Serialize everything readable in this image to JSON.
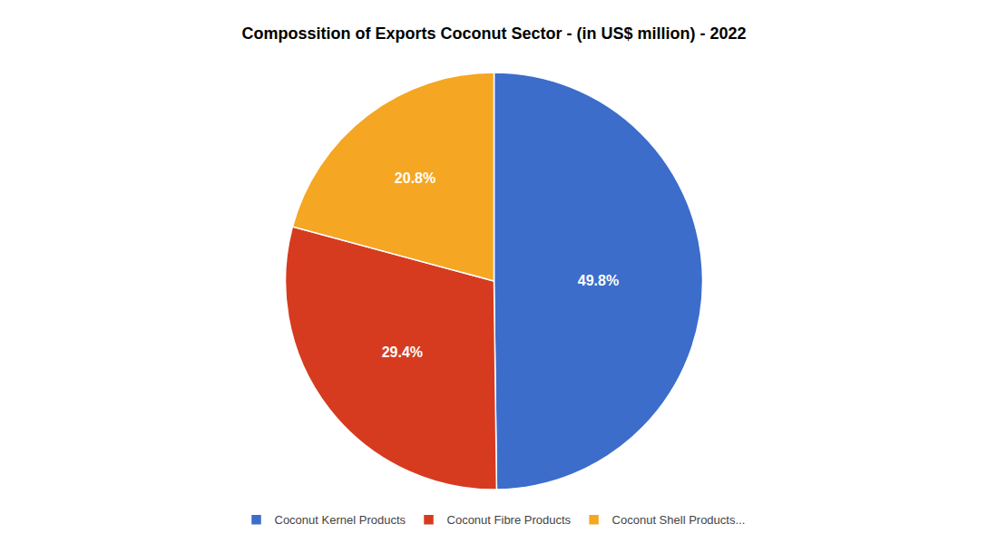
{
  "chart_data": {
    "type": "pie",
    "title": "Compossition of Exports Coconut Sector - (in US$ million) - 2022",
    "categories": [
      "Coconut Kernel Products",
      "Coconut Fibre Products",
      "Coconut Shell Products..."
    ],
    "values": [
      49.8,
      29.4,
      20.8
    ],
    "value_labels": [
      "49.8%",
      "29.4%",
      "20.8%"
    ],
    "colors": [
      "#3c6dca",
      "#d63b1f",
      "#f5a623"
    ],
    "data_labels": true,
    "legend": "bottom"
  }
}
